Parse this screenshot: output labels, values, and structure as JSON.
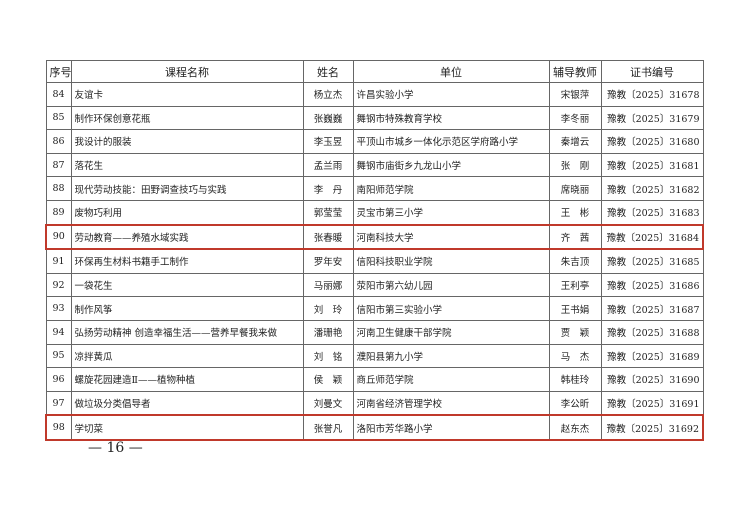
{
  "table": {
    "header": [
      "序号",
      "课程名称",
      "姓名",
      "单位",
      "辅导教师",
      "证书编号"
    ],
    "rows": [
      [
        "84",
        "友谊卡",
        "杨立杰",
        "许昌实验小学",
        "宋银萍",
        "豫教〔2025〕31678"
      ],
      [
        "85",
        "制作环保创意花瓶",
        "张巍巍",
        "舞钢市特殊教育学校",
        "李冬丽",
        "豫教〔2025〕31679"
      ],
      [
        "86",
        "我设计的服装",
        "李玉昱",
        "平顶山市城乡一体化示范区学府路小学",
        "秦增云",
        "豫教〔2025〕31680"
      ],
      [
        "87",
        "落花生",
        "孟兰雨",
        "舞钢市庙街乡九龙山小学",
        "张　刚",
        "豫教〔2025〕31681"
      ],
      [
        "88",
        "现代劳动技能：田野调查技巧与实践",
        "李　丹",
        "南阳师范学院",
        "席晓丽",
        "豫教〔2025〕31682"
      ],
      [
        "89",
        "废物巧利用",
        "郭莹莹",
        "灵宝市第三小学",
        "王　彬",
        "豫教〔2025〕31683"
      ],
      [
        "90",
        "劳动教育——养殖水域实践",
        "张春暖",
        "河南科技大学",
        "齐　茜",
        "豫教〔2025〕31684"
      ],
      [
        "91",
        "环保再生材料书籍手工制作",
        "罗年安",
        "信阳科技职业学院",
        "朱吉顶",
        "豫教〔2025〕31685"
      ],
      [
        "92",
        "一袋花生",
        "马丽娜",
        "荥阳市第六幼儿园",
        "王利亭",
        "豫教〔2025〕31686"
      ],
      [
        "93",
        "制作风筝",
        "刘　玲",
        "信阳市第三实验小学",
        "王书娟",
        "豫教〔2025〕31687"
      ],
      [
        "94",
        "弘扬劳动精神 创造幸福生活——营养早餐我来做",
        "潘珊艳",
        "河南卫生健康干部学院",
        "贾　颖",
        "豫教〔2025〕31688"
      ],
      [
        "95",
        "凉拌黄瓜",
        "刘　铭",
        "濮阳县第九小学",
        "马　杰",
        "豫教〔2025〕31689"
      ],
      [
        "96",
        "螺旋花园建造Ⅱ——植物种植",
        "侯　颖",
        "商丘师范学院",
        "韩桂玲",
        "豫教〔2025〕31690"
      ],
      [
        "97",
        "做垃圾分类倡导者",
        "刘曼文",
        "河南省经济管理学校",
        "李公昕",
        "豫教〔2025〕31691"
      ],
      [
        "98",
        "学切菜",
        "张誉凡",
        "洛阳市芳华路小学",
        "赵东杰",
        "豫教〔2025〕31692"
      ]
    ]
  },
  "footer": {
    "page": "— 16 —"
  }
}
